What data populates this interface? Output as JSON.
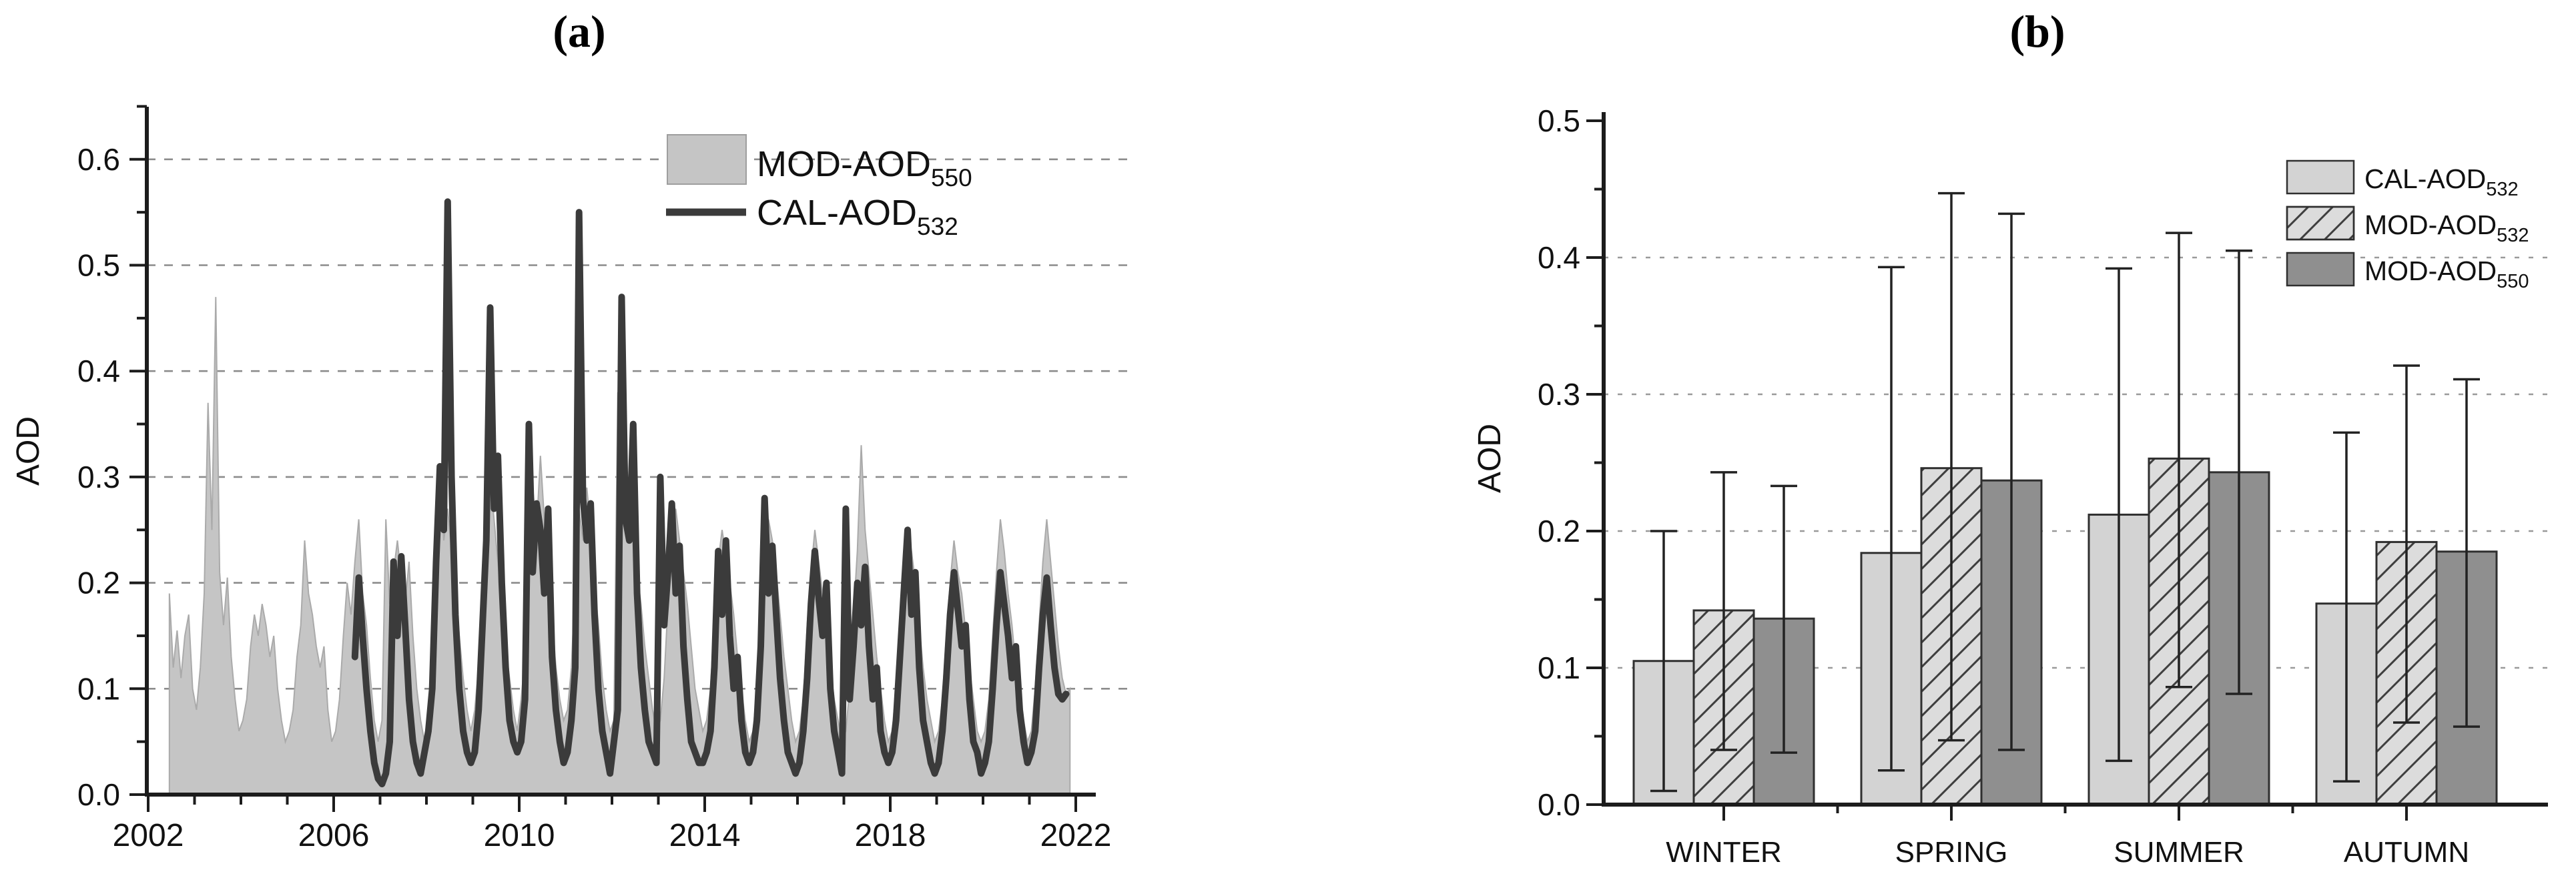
{
  "colors": {
    "background": "#ffffff",
    "text": "#111111",
    "axis": "#1c1c1c",
    "grid_a": "#8c8c8c",
    "grid_b": "#9a9a9a",
    "area": "#c5c5c5",
    "area_edge": "#aaaaaa",
    "line": "#3b3b3b",
    "bar_outline": "#2f2f2f",
    "hatch": "#3f3f3f",
    "errbar": "#222222",
    "legend_swatch_border": "#9e9e9e"
  },
  "chart_data": [
    {
      "type": "area",
      "title": "(a)",
      "xlabel": "",
      "ylabel": "AOD",
      "xlim": [
        2002,
        2022.4
      ],
      "ylim": [
        0,
        0.65
      ],
      "grid": "horizontal dashed at 0.1-0.6",
      "legend_position": "inside top, left of center",
      "x_major_ticks": [
        2002,
        2006,
        2010,
        2014,
        2018,
        2022
      ],
      "x_tick_labels": [
        "2002",
        "2006",
        "2010",
        "2014",
        "2018",
        "2022"
      ],
      "x_minor_step_years": 1,
      "y_major_ticks": [
        0,
        0.1,
        0.2,
        0.3,
        0.4,
        0.5,
        0.6
      ],
      "y_tick_labels": [
        "0.0",
        "0.1",
        "0.2",
        "0.3",
        "0.4",
        "0.5",
        "0.6"
      ],
      "y_minor_step": 0.05,
      "series": [
        {
          "name_main": "MOD-AOD",
          "name_sub": "550",
          "style": "area",
          "fill": "#c5c5c5",
          "x_start": 2002.458,
          "x_step": "monthly",
          "values": [
            0.19,
            0.12,
            0.155,
            0.11,
            0.15,
            0.17,
            0.1,
            0.08,
            0.12,
            0.19,
            0.37,
            0.25,
            0.47,
            0.21,
            0.16,
            0.205,
            0.13,
            0.09,
            0.06,
            0.07,
            0.09,
            0.14,
            0.17,
            0.15,
            0.18,
            0.16,
            0.13,
            0.15,
            0.1,
            0.07,
            0.05,
            0.06,
            0.08,
            0.13,
            0.16,
            0.24,
            0.19,
            0.17,
            0.14,
            0.12,
            0.14,
            0.08,
            0.05,
            0.06,
            0.09,
            0.15,
            0.2,
            0.17,
            0.22,
            0.26,
            0.19,
            0.16,
            0.11,
            0.07,
            0.05,
            0.07,
            0.26,
            0.18,
            0.21,
            0.24,
            0.205,
            0.18,
            0.22,
            0.15,
            0.1,
            0.07,
            0.05,
            0.08,
            0.12,
            0.2,
            0.31,
            0.24,
            0.27,
            0.23,
            0.19,
            0.15,
            0.11,
            0.08,
            0.06,
            0.08,
            0.12,
            0.21,
            0.25,
            0.3,
            0.26,
            0.22,
            0.18,
            0.14,
            0.11,
            0.08,
            0.06,
            0.09,
            0.13,
            0.22,
            0.29,
            0.25,
            0.32,
            0.26,
            0.21,
            0.17,
            0.12,
            0.09,
            0.07,
            0.08,
            0.12,
            0.2,
            0.27,
            0.24,
            0.29,
            0.25,
            0.2,
            0.16,
            0.11,
            0.08,
            0.06,
            0.07,
            0.38,
            0.31,
            0.26,
            0.28,
            0.24,
            0.21,
            0.18,
            0.14,
            0.11,
            0.08,
            0.06,
            0.07,
            0.11,
            0.18,
            0.24,
            0.27,
            0.24,
            0.21,
            0.18,
            0.14,
            0.1,
            0.08,
            0.06,
            0.07,
            0.1,
            0.17,
            0.22,
            0.25,
            0.225,
            0.2,
            0.17,
            0.13,
            0.1,
            0.07,
            0.05,
            0.06,
            0.1,
            0.18,
            0.23,
            0.26,
            0.24,
            0.21,
            0.17,
            0.13,
            0.1,
            0.07,
            0.05,
            0.06,
            0.09,
            0.16,
            0.21,
            0.25,
            0.22,
            0.19,
            0.16,
            0.12,
            0.09,
            0.07,
            0.05,
            0.06,
            0.1,
            0.17,
            0.23,
            0.33,
            0.25,
            0.21,
            0.17,
            0.13,
            0.1,
            0.07,
            0.05,
            0.06,
            0.1,
            0.16,
            0.22,
            0.25,
            0.23,
            0.2,
            0.16,
            0.12,
            0.09,
            0.07,
            0.05,
            0.06,
            0.09,
            0.15,
            0.2,
            0.24,
            0.21,
            0.19,
            0.155,
            0.12,
            0.09,
            0.06,
            0.05,
            0.06,
            0.09,
            0.15,
            0.21,
            0.26,
            0.23,
            0.19,
            0.16,
            0.12,
            0.09,
            0.07,
            0.05,
            0.06,
            0.1,
            0.16,
            0.22,
            0.26,
            0.22,
            0.18,
            0.14,
            0.11,
            0.095,
            0.1
          ]
        },
        {
          "name_main": "CAL-AOD",
          "name_sub": "532",
          "style": "line",
          "stroke": "#3b3b3b",
          "x_start": 2006.458,
          "x_step": "monthly",
          "values": [
            0.13,
            0.205,
            0.15,
            0.1,
            0.06,
            0.03,
            0.015,
            0.01,
            0.02,
            0.05,
            0.22,
            0.15,
            0.225,
            0.16,
            0.09,
            0.05,
            0.03,
            0.02,
            0.04,
            0.06,
            0.1,
            0.22,
            0.31,
            0.25,
            0.56,
            0.3,
            0.17,
            0.1,
            0.06,
            0.04,
            0.03,
            0.04,
            0.08,
            0.16,
            0.24,
            0.46,
            0.27,
            0.32,
            0.2,
            0.12,
            0.07,
            0.05,
            0.04,
            0.05,
            0.09,
            0.35,
            0.21,
            0.275,
            0.25,
            0.19,
            0.27,
            0.13,
            0.08,
            0.05,
            0.03,
            0.04,
            0.07,
            0.12,
            0.55,
            0.28,
            0.24,
            0.275,
            0.17,
            0.1,
            0.06,
            0.04,
            0.02,
            0.05,
            0.08,
            0.47,
            0.26,
            0.24,
            0.35,
            0.19,
            0.12,
            0.08,
            0.05,
            0.04,
            0.03,
            0.3,
            0.16,
            0.21,
            0.275,
            0.19,
            0.235,
            0.14,
            0.09,
            0.05,
            0.04,
            0.03,
            0.03,
            0.04,
            0.06,
            0.12,
            0.23,
            0.17,
            0.24,
            0.15,
            0.1,
            0.13,
            0.07,
            0.04,
            0.03,
            0.04,
            0.07,
            0.14,
            0.28,
            0.19,
            0.235,
            0.17,
            0.11,
            0.07,
            0.04,
            0.03,
            0.02,
            0.03,
            0.06,
            0.11,
            0.18,
            0.23,
            0.185,
            0.15,
            0.2,
            0.1,
            0.06,
            0.04,
            0.02,
            0.27,
            0.09,
            0.14,
            0.2,
            0.16,
            0.215,
            0.14,
            0.09,
            0.12,
            0.06,
            0.04,
            0.03,
            0.04,
            0.07,
            0.13,
            0.19,
            0.25,
            0.17,
            0.21,
            0.12,
            0.07,
            0.05,
            0.03,
            0.02,
            0.03,
            0.06,
            0.11,
            0.17,
            0.21,
            0.175,
            0.14,
            0.16,
            0.09,
            0.05,
            0.04,
            0.02,
            0.03,
            0.05,
            0.1,
            0.16,
            0.21,
            0.18,
            0.15,
            0.11,
            0.14,
            0.08,
            0.05,
            0.03,
            0.04,
            0.06,
            0.12,
            0.17,
            0.205,
            0.16,
            0.12,
            0.095,
            0.09,
            0.095
          ]
        }
      ]
    },
    {
      "type": "bar",
      "title": "(b)",
      "xlabel": "",
      "ylabel": "AOD",
      "categories": [
        "WINTER",
        "SPRING",
        "SUMMER",
        "AUTUMN"
      ],
      "ylim": [
        0,
        0.5
      ],
      "grid": "horizontal dashed at 0.1-0.4",
      "legend_position": "inside top-right",
      "y_major_ticks": [
        0,
        0.1,
        0.2,
        0.3,
        0.4,
        0.5
      ],
      "y_tick_labels": [
        "0.0",
        "0.1",
        "0.2",
        "0.3",
        "0.4",
        "0.5"
      ],
      "y_minor_step": 0.05,
      "series": [
        {
          "name_main": "CAL-AOD",
          "name_sub": "532",
          "fill": "#d3d3d3",
          "hatch": false,
          "values": [
            0.105,
            0.184,
            0.212,
            0.147
          ],
          "err_low": [
            0.01,
            0.025,
            0.032,
            0.017
          ],
          "err_high": [
            0.2,
            0.393,
            0.392,
            0.272
          ]
        },
        {
          "name_main": "MOD-AOD",
          "name_sub": "532",
          "fill": "#dcdcdc",
          "hatch": true,
          "values": [
            0.142,
            0.246,
            0.253,
            0.192
          ],
          "err_low": [
            0.04,
            0.047,
            0.086,
            0.06
          ],
          "err_high": [
            0.243,
            0.447,
            0.418,
            0.321
          ]
        },
        {
          "name_main": "MOD-AOD",
          "name_sub": "550",
          "fill": "#8f8f8f",
          "hatch": false,
          "values": [
            0.136,
            0.237,
            0.243,
            0.185
          ],
          "err_low": [
            0.038,
            0.04,
            0.081,
            0.057
          ],
          "err_high": [
            0.233,
            0.432,
            0.405,
            0.311
          ]
        }
      ]
    }
  ]
}
